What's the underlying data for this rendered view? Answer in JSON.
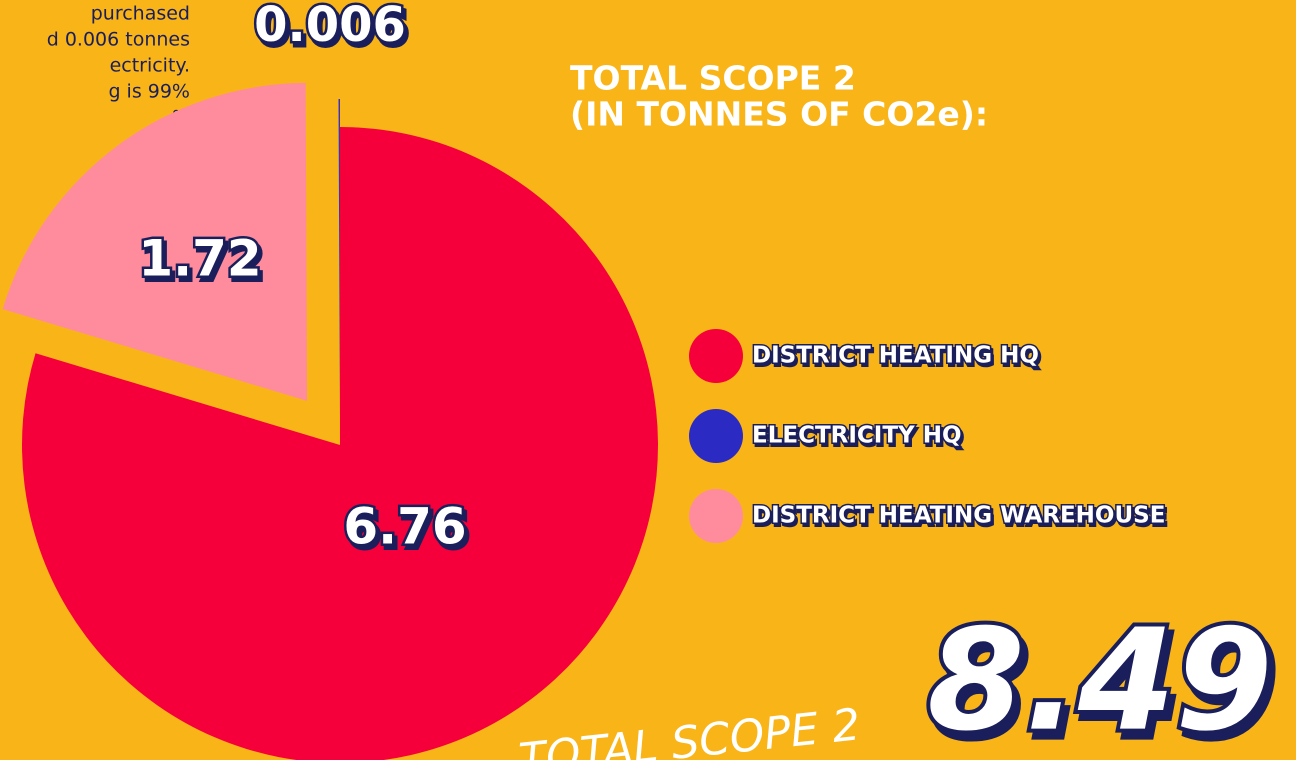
{
  "intro_lines": [
    "purchased",
    "d 0.006 tonnes",
    "ectricity.",
    "g is 99%",
    "%",
    "e"
  ],
  "chart_data": {
    "type": "pie",
    "title": [
      "TOTAL SCOPE 2",
      "(IN TONNES OF CO2e):"
    ],
    "categories": [
      "DISTRICT HEATING HQ",
      "ELECTRICITY HQ",
      "DISTRICT HEATING WAREHOUSE"
    ],
    "values": [
      6.76,
      0.006,
      1.72
    ],
    "colors": [
      "#f5003a",
      "#2b2bc4",
      "#ff8c9d"
    ],
    "legend": "right",
    "total": {
      "label": "TOTAL SCOPE 2",
      "value": 8.49
    }
  }
}
